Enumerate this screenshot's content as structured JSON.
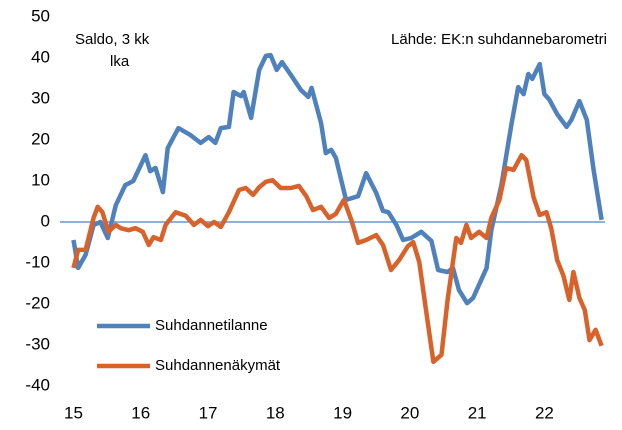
{
  "chart_data": {
    "type": "line",
    "annotations": [
      "Saldo, 3 kk",
      "lka",
      "Lähde: EK:n suhdannebarometri"
    ],
    "xlim": [
      14.8,
      22.9
    ],
    "xticks": [
      15,
      16,
      17,
      18,
      19,
      20,
      21,
      22
    ],
    "ylim": [
      -40,
      50
    ],
    "yticks": [
      -40,
      -30,
      -20,
      -10,
      0,
      10,
      20,
      30,
      40,
      50
    ],
    "zero_line": true,
    "legend": "lower left",
    "series": [
      {
        "name": "Suhdannetilanne",
        "color": "#4f81bd",
        "x": [
          15.0,
          15.07,
          15.18,
          15.3,
          15.4,
          15.51,
          15.63,
          15.77,
          15.89,
          16.07,
          16.14,
          16.22,
          16.33,
          16.4,
          16.56,
          16.74,
          16.89,
          17.01,
          17.11,
          17.19,
          17.31,
          17.38,
          17.49,
          17.53,
          17.64,
          17.76,
          17.86,
          17.93,
          18.02,
          18.1,
          18.23,
          18.38,
          18.49,
          18.54,
          18.68,
          18.75,
          18.83,
          18.9,
          19.05,
          19.23,
          19.35,
          19.5,
          19.6,
          19.68,
          19.8,
          19.9,
          20.02,
          20.17,
          20.32,
          20.42,
          20.56,
          20.64,
          20.73,
          20.85,
          20.94,
          21.14,
          21.21,
          21.36,
          21.51,
          21.61,
          21.69,
          21.76,
          21.82,
          21.93,
          22.0,
          22.07,
          22.19,
          22.33,
          22.4,
          22.52,
          22.63,
          22.73,
          22.85
        ],
        "values": [
          -4.4,
          -11.2,
          -8.0,
          -0.7,
          0,
          -3.9,
          4.1,
          9.0,
          10.0,
          16.3,
          12.4,
          13.2,
          7.3,
          18.0,
          22.9,
          21.2,
          19.3,
          20.7,
          19.3,
          22.9,
          23.2,
          31.7,
          30.7,
          31.7,
          25.4,
          37.1,
          40.5,
          40.7,
          37.1,
          39.0,
          35.9,
          32.2,
          30.5,
          32.7,
          24.1,
          16.8,
          17.6,
          15.6,
          5.4,
          6.3,
          11.9,
          7.1,
          2.7,
          2.4,
          -0.7,
          -4.4,
          -3.9,
          -2.4,
          -4.6,
          -11.7,
          -12.2,
          -11.2,
          -16.6,
          -19.8,
          -18.5,
          -11.2,
          -2.0,
          9.0,
          23.9,
          32.9,
          31.2,
          36.1,
          34.9,
          38.5,
          31.2,
          29.9,
          26.3,
          23.2,
          24.9,
          29.5,
          24.9,
          12.7,
          0.5
        ]
      },
      {
        "name": "Suhdannenäkymät",
        "color": "#d9622b",
        "x": [
          15.0,
          15.07,
          15.18,
          15.3,
          15.36,
          15.43,
          15.52,
          15.63,
          15.7,
          15.82,
          15.92,
          16.03,
          16.12,
          16.19,
          16.3,
          16.37,
          16.52,
          16.67,
          16.79,
          16.89,
          17.0,
          17.09,
          17.19,
          17.31,
          17.46,
          17.56,
          17.67,
          17.76,
          17.86,
          17.96,
          18.08,
          18.23,
          18.35,
          18.46,
          18.56,
          18.68,
          18.8,
          18.9,
          19.02,
          19.13,
          19.23,
          19.35,
          19.5,
          19.6,
          19.72,
          19.84,
          19.97,
          20.05,
          20.14,
          20.24,
          20.35,
          20.47,
          20.56,
          20.69,
          20.76,
          20.84,
          20.91,
          21.03,
          21.14,
          21.21,
          21.33,
          21.43,
          21.54,
          21.66,
          21.73,
          21.84,
          21.93,
          22.03,
          22.1,
          22.19,
          22.28,
          22.37,
          22.43,
          22.52,
          22.6,
          22.67,
          22.76,
          22.85
        ],
        "values": [
          -11.2,
          -6.8,
          -6.8,
          1.0,
          3.7,
          2.4,
          -2.4,
          -0.7,
          -1.5,
          -2.0,
          -1.5,
          -2.4,
          -5.6,
          -3.7,
          -4.4,
          -0.7,
          2.4,
          1.5,
          -0.7,
          0.5,
          -1.0,
          0,
          -1.2,
          2.4,
          7.8,
          8.3,
          6.6,
          8.5,
          9.8,
          10.2,
          8.3,
          8.3,
          8.8,
          6.3,
          2.9,
          3.7,
          1.0,
          2.0,
          5.4,
          0.5,
          -5.1,
          -4.4,
          -3.2,
          -5.6,
          -11.7,
          -9.3,
          -5.9,
          -4.9,
          -9.8,
          -21.5,
          -34.1,
          -32.4,
          -19.0,
          -3.9,
          -5.1,
          -0.7,
          -3.9,
          -2.4,
          -3.9,
          1.0,
          5.4,
          13.2,
          12.7,
          16.3,
          15.1,
          5.9,
          1.7,
          2.4,
          -1.5,
          -9.3,
          -13.0,
          -19.0,
          -12.2,
          -18.5,
          -21.5,
          -28.8,
          -26.3,
          -30.2
        ]
      }
    ]
  }
}
